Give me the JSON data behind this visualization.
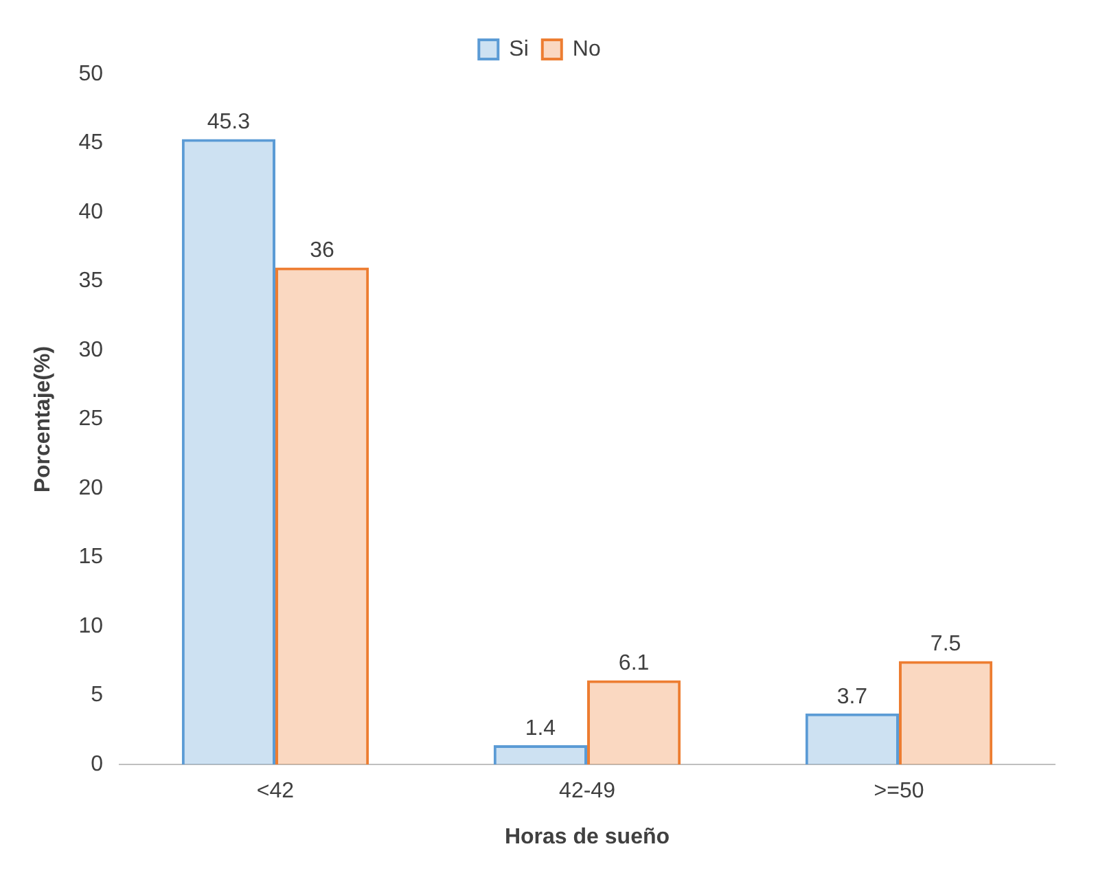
{
  "chart_data": {
    "type": "bar",
    "xlabel": "Horas de sueño",
    "ylabel": "Porcentaje(%)",
    "categories": [
      "<42",
      "42-49",
      ">=50"
    ],
    "series": [
      {
        "name": "Si",
        "color": "#5b9bd5",
        "values": [
          45.3,
          1.4,
          3.7
        ]
      },
      {
        "name": "No",
        "color": "#ed7d31",
        "values": [
          36,
          6.1,
          7.5
        ]
      }
    ],
    "ylim": [
      0,
      50
    ],
    "yticks": [
      0,
      5,
      10,
      15,
      20,
      25,
      30,
      35,
      40,
      45,
      50
    ],
    "grid": false,
    "legend": "top",
    "data_labels": true
  }
}
